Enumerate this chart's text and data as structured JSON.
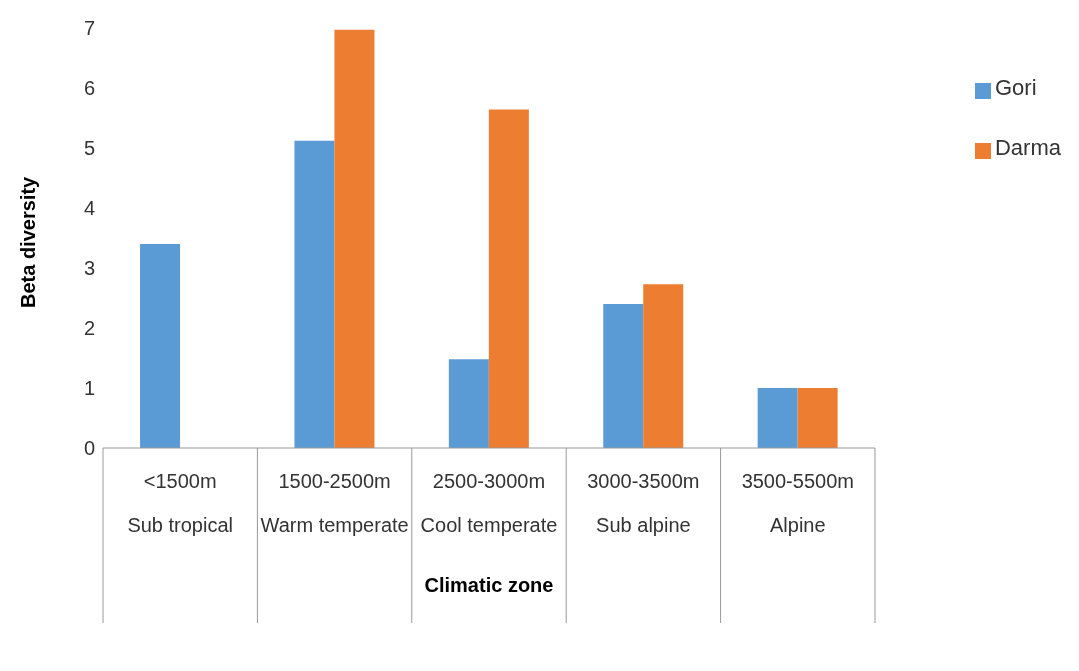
{
  "chart_data": {
    "type": "bar",
    "xlabel": "Climatic zone",
    "ylabel": "Beta diversity",
    "categories": [
      "<1500m\nSub tropical",
      "1500-2500m\nWarm temperate",
      "2500-3000m\nCool temperate",
      "3000-3500m\nSub alpine",
      "3500-5500m\nAlpine"
    ],
    "series": [
      {
        "name": "Gori",
        "color": "#5b9bd5",
        "values": [
          3.4,
          5.12,
          1.48,
          2.4,
          1.0
        ]
      },
      {
        "name": "Darma",
        "color": "#ed7d31",
        "values": [
          null,
          6.97,
          5.64,
          2.73,
          1.0
        ]
      }
    ],
    "ylim": [
      0,
      7
    ],
    "yticks": [
      0,
      1,
      2,
      3,
      4,
      5,
      6,
      7
    ],
    "grid": false,
    "legend": "right"
  }
}
